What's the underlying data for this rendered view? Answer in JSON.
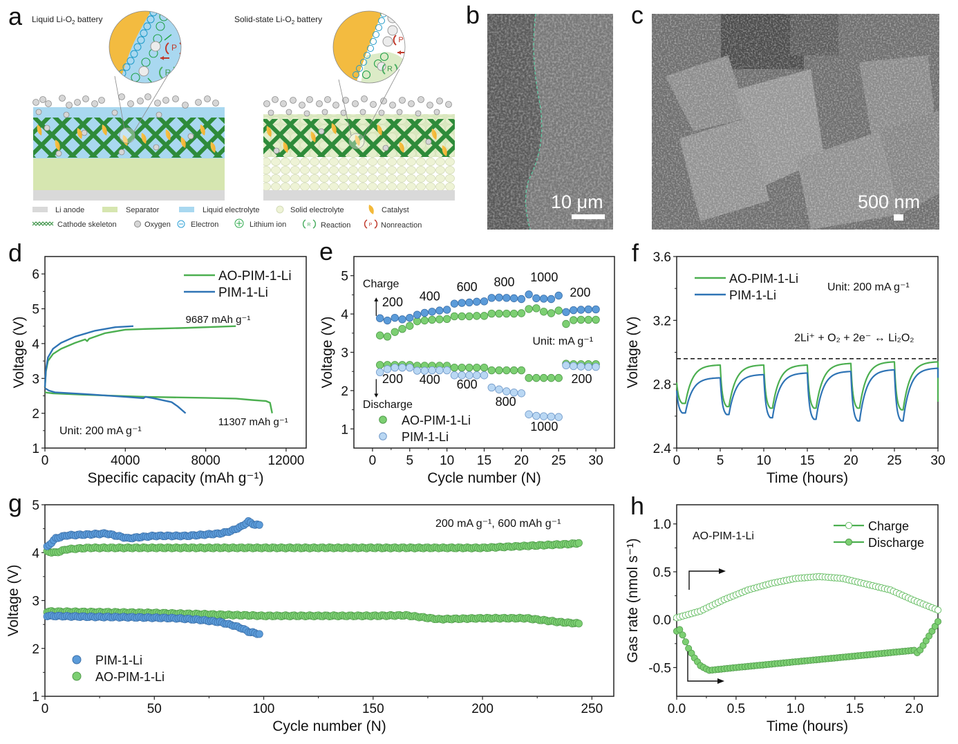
{
  "panels": {
    "a": {
      "letter": "a",
      "left_title": "Liquid Li-O",
      "left_title_sub": "2",
      "left_title_tail": " battery",
      "right_title": "Solid-state Li-O",
      "right_title_sub": "2",
      "right_title_tail": " battery",
      "inset_labels": {
        "reaction": "R",
        "nonreaction": "P"
      },
      "legend": [
        {
          "key": "li-anode",
          "label": "Li anode",
          "color": "#d9d9d9"
        },
        {
          "key": "separator",
          "label": "Separator",
          "color": "#d6e6b0"
        },
        {
          "key": "liquid-electrolyte",
          "label": "Liquid electrolyte",
          "color": "#a9d8f0"
        },
        {
          "key": "solid-electrolyte",
          "label": "Solid electrolyte",
          "color": "#eef2d6"
        },
        {
          "key": "catalyst",
          "label": "Catalyst",
          "color": "#f3b93a"
        },
        {
          "key": "cathode-skeleton",
          "label": "Cathode skeleton",
          "color": "#2e8b3a"
        },
        {
          "key": "oxygen",
          "label": "Oxygen",
          "color": "#cfcfcf"
        },
        {
          "key": "electron",
          "label": "Electron",
          "color": "#2a9fd6"
        },
        {
          "key": "lithium-ion",
          "label": "Lithium ion",
          "color": "#2aa84a"
        },
        {
          "key": "reaction",
          "label": "Reaction",
          "color": "#4caf63"
        },
        {
          "key": "nonreaction",
          "label": "Nonreaction",
          "color": "#c0392b"
        }
      ]
    },
    "b": {
      "letter": "b",
      "scale_label": "10 μm"
    },
    "c": {
      "letter": "c",
      "scale_label": "500 nm"
    },
    "d": {
      "letter": "d"
    },
    "e": {
      "letter": "e"
    },
    "f": {
      "letter": "f"
    },
    "g": {
      "letter": "g"
    },
    "h": {
      "letter": "h"
    }
  },
  "colors": {
    "green": "#4caf50",
    "blue": "#2f74b5",
    "green_marker": "#7ccf72",
    "green_marker_edge": "#4f9a4a",
    "blue_marker": "#5b9bd9",
    "blue_marker_edge": "#3b6fa8",
    "light_blue_marker": "#b9d7f3",
    "light_blue_marker_edge": "#6f98c8"
  },
  "chart_data": [
    {
      "id": "d",
      "type": "line",
      "xlabel": "Specific capacity (mAh g⁻¹)",
      "ylabel": "Voltage (V)",
      "xlim": [
        0,
        13000
      ],
      "ylim": [
        1,
        6.5
      ],
      "xticks": [
        0,
        4000,
        8000,
        12000
      ],
      "yticks": [
        1,
        2,
        3,
        4,
        5,
        6
      ],
      "grid": false,
      "legend_position": "top-right",
      "annotations": [
        {
          "text": "9687 mAh g⁻¹",
          "x": 9600,
          "y": 4.85
        },
        {
          "text": "11307 mAh g⁻¹",
          "x": 11000,
          "y": 1.65
        },
        {
          "text": "Unit: 200 mA g⁻¹",
          "x": 1200,
          "y": 1.45
        }
      ],
      "series": [
        {
          "name": "AO-PIM-1-Li",
          "color": "#4caf50",
          "segments": [
            {
              "x": [
                0,
                50,
                150,
                400,
                800,
                1500,
                2000,
                2100,
                2200,
                3000,
                4000,
                5000,
                7000,
                9500
              ],
              "y": [
                2.75,
                3.2,
                3.5,
                3.7,
                3.85,
                4.02,
                4.12,
                4.07,
                4.14,
                4.3,
                4.4,
                4.42,
                4.45,
                4.5
              ]
            },
            {
              "x": [
                0,
                400,
                2000,
                5000,
                8000,
                9500,
                10300,
                11000,
                11200,
                11307
              ],
              "y": [
                2.6,
                2.57,
                2.53,
                2.47,
                2.44,
                2.42,
                2.38,
                2.35,
                2.3,
                2.0
              ]
            }
          ]
        },
        {
          "name": "PIM-1-Li",
          "color": "#2f74b5",
          "segments": [
            {
              "x": [
                0,
                50,
                150,
                400,
                800,
                1500,
                2500,
                3500,
                4400
              ],
              "y": [
                2.75,
                3.25,
                3.6,
                3.85,
                4.02,
                4.2,
                4.37,
                4.47,
                4.5
              ]
            },
            {
              "x": [
                0,
                200,
                500,
                2000,
                4000,
                4900,
                5000,
                5400,
                6300,
                6600,
                7000
              ],
              "y": [
                2.72,
                2.65,
                2.6,
                2.55,
                2.47,
                2.43,
                2.47,
                2.43,
                2.32,
                2.2,
                2.0
              ]
            }
          ]
        }
      ]
    },
    {
      "id": "e",
      "type": "scatter",
      "xlabel": "Cycle number (N)",
      "ylabel": "Voltage (V)",
      "xlim": [
        -2.5,
        32.5
      ],
      "ylim": [
        0.5,
        5.5
      ],
      "xticks": [
        0,
        5,
        10,
        15,
        20,
        25,
        30
      ],
      "yticks": [
        1,
        2,
        3,
        4,
        5
      ],
      "grid": false,
      "legend_position": "bottom-left",
      "annotations": [
        {
          "text": "Charge",
          "x": -1.3,
          "y": 4.7
        },
        {
          "text": "200",
          "x": 1.3,
          "y": 4.2
        },
        {
          "text": "400",
          "x": 6.3,
          "y": 4.35
        },
        {
          "text": "600",
          "x": 11.3,
          "y": 4.6
        },
        {
          "text": "800",
          "x": 16.3,
          "y": 4.72
        },
        {
          "text": "1000",
          "x": 21.2,
          "y": 4.85
        },
        {
          "text": "200",
          "x": 26.5,
          "y": 4.45
        },
        {
          "text": "Unit: mA g⁻¹",
          "x": 21.5,
          "y": 3.2
        },
        {
          "text": "200",
          "x": 1.3,
          "y": 2.2
        },
        {
          "text": "400",
          "x": 6.3,
          "y": 2.18
        },
        {
          "text": "600",
          "x": 11.3,
          "y": 2.05
        },
        {
          "text": "800",
          "x": 16.5,
          "y": 1.6
        },
        {
          "text": "1000",
          "x": 21.2,
          "y": 0.95
        },
        {
          "text": "200",
          "x": 26.7,
          "y": 2.2
        },
        {
          "text": "Discharge",
          "x": -1.3,
          "y": 1.55
        }
      ],
      "series": [
        {
          "name": "AO-PIM-1-Li",
          "role": "charge",
          "marker": "green",
          "x": [
            1,
            2,
            3,
            4,
            5,
            6,
            7,
            8,
            9,
            10,
            11,
            12,
            13,
            14,
            15,
            16,
            17,
            18,
            19,
            20,
            21,
            22,
            23,
            24,
            25,
            26,
            27,
            28,
            29,
            30
          ],
          "y": [
            3.44,
            3.41,
            3.53,
            3.61,
            3.69,
            3.81,
            3.83,
            3.85,
            3.86,
            3.87,
            3.94,
            3.94,
            3.94,
            3.95,
            3.95,
            4.01,
            4.01,
            4.01,
            4.01,
            4.02,
            4.13,
            4.15,
            4.06,
            4.02,
            4.09,
            3.74,
            3.84,
            3.85,
            3.85,
            3.85
          ]
        },
        {
          "name": "PIM-1-Li",
          "role": "charge",
          "marker": "blue",
          "x": [
            1,
            2,
            3,
            4,
            5,
            6,
            7,
            8,
            9,
            10,
            11,
            12,
            13,
            14,
            15,
            16,
            17,
            18,
            19,
            20,
            21,
            22,
            23,
            24,
            25,
            26,
            27,
            28,
            29,
            30
          ],
          "y": [
            3.89,
            3.83,
            3.9,
            3.86,
            3.9,
            3.98,
            4.03,
            4.06,
            4.09,
            4.11,
            4.27,
            4.29,
            4.3,
            4.32,
            4.33,
            4.42,
            4.43,
            4.42,
            4.41,
            4.39,
            4.51,
            4.41,
            4.4,
            4.39,
            4.48,
            4.05,
            4.1,
            4.11,
            4.12,
            4.12
          ]
        },
        {
          "name": "AO-PIM-1-Li",
          "role": "discharge",
          "marker": "green",
          "x": [
            1,
            2,
            3,
            4,
            5,
            6,
            7,
            8,
            9,
            10,
            11,
            12,
            13,
            14,
            15,
            16,
            17,
            18,
            19,
            20,
            21,
            22,
            23,
            24,
            25,
            26,
            27,
            28,
            29,
            30
          ],
          "y": [
            2.67,
            2.67,
            2.67,
            2.67,
            2.67,
            2.65,
            2.65,
            2.65,
            2.65,
            2.65,
            2.6,
            2.6,
            2.6,
            2.6,
            2.6,
            2.53,
            2.53,
            2.53,
            2.53,
            2.53,
            2.33,
            2.33,
            2.33,
            2.33,
            2.33,
            2.7,
            2.69,
            2.69,
            2.69,
            2.69
          ]
        },
        {
          "name": "PIM-1-Li",
          "role": "discharge",
          "marker": "light_blue",
          "x": [
            1,
            2,
            3,
            4,
            5,
            6,
            7,
            8,
            9,
            10,
            11,
            12,
            13,
            14,
            15,
            16,
            17,
            18,
            19,
            20,
            21,
            22,
            23,
            24,
            25,
            26,
            27,
            28,
            29,
            30
          ],
          "y": [
            2.48,
            2.56,
            2.6,
            2.6,
            2.6,
            2.52,
            2.52,
            2.53,
            2.53,
            2.53,
            2.4,
            2.4,
            2.4,
            2.4,
            2.4,
            2.08,
            2.03,
            1.98,
            1.95,
            1.93,
            1.38,
            1.34,
            1.33,
            1.32,
            1.31,
            2.66,
            2.64,
            2.63,
            2.62,
            2.62
          ]
        }
      ]
    },
    {
      "id": "f",
      "type": "line",
      "xlabel": "Time (hours)",
      "ylabel": "Voltage (V)",
      "xlim": [
        0,
        30
      ],
      "ylim": [
        2.4,
        3.6
      ],
      "xticks": [
        0,
        5,
        10,
        15,
        20,
        25,
        30
      ],
      "yticks": [
        2.4,
        2.8,
        3.2,
        3.6
      ],
      "grid": false,
      "legend_position": "top-left",
      "reference_line": {
        "y": 2.96,
        "style": "dashed",
        "label": "2Li⁺ + O₂ + 2e⁻ ↔ Li₂O₂"
      },
      "annotations": [
        {
          "text": "Unit: 200 mA g⁻¹",
          "x": 17.5,
          "y": 3.4
        }
      ],
      "series": [
        {
          "name": "AO-PIM-1-Li",
          "color": "#4caf50",
          "cycles": [
            {
              "start": 0,
              "min": 2.68,
              "max": 2.92
            },
            {
              "start": 5,
              "min": 2.66,
              "max": 2.92
            },
            {
              "start": 10,
              "min": 2.65,
              "max": 2.92
            },
            {
              "start": 15,
              "min": 2.65,
              "max": 2.93
            },
            {
              "start": 20,
              "min": 2.65,
              "max": 2.94
            },
            {
              "start": 25,
              "min": 2.64,
              "max": 2.94
            }
          ]
        },
        {
          "name": "PIM-1-Li",
          "color": "#2f74b5",
          "cycles": [
            {
              "start": 0,
              "min": 2.62,
              "max": 2.84
            },
            {
              "start": 5,
              "min": 2.61,
              "max": 2.86
            },
            {
              "start": 10,
              "min": 2.59,
              "max": 2.87
            },
            {
              "start": 15,
              "min": 2.58,
              "max": 2.88
            },
            {
              "start": 20,
              "min": 2.57,
              "max": 2.89
            },
            {
              "start": 25,
              "min": 2.57,
              "max": 2.9
            }
          ]
        }
      ]
    },
    {
      "id": "g",
      "type": "scatter",
      "xlabel": "Cycle number (N)",
      "ylabel": "Voltage (V)",
      "xlim": [
        0,
        260
      ],
      "ylim": [
        1,
        5
      ],
      "xticks": [
        0,
        50,
        100,
        150,
        200,
        250
      ],
      "yticks": [
        1,
        2,
        3,
        4,
        5
      ],
      "grid": false,
      "legend_position": "bottom-left",
      "annotations": [
        {
          "text": "200 mA g⁻¹, 600 mAh g⁻¹",
          "x": 162,
          "y": 4.62
        }
      ],
      "series": [
        {
          "name": "PIM-1-Li",
          "marker": "blue",
          "n_cycles": 98,
          "charge_keypoints": {
            "x": [
              1,
              5,
              10,
              20,
              28,
              38,
              50,
              65,
              80,
              85,
              90,
              93,
              96
            ],
            "y": [
              4.12,
              4.3,
              4.36,
              4.38,
              4.4,
              4.3,
              4.35,
              4.35,
              4.4,
              4.45,
              4.55,
              4.65,
              4.58
            ]
          },
          "discharge_keypoints": {
            "x": [
              1,
              20,
              40,
              60,
              70,
              80,
              86,
              90,
              93,
              98
            ],
            "y": [
              2.68,
              2.66,
              2.65,
              2.63,
              2.6,
              2.55,
              2.48,
              2.42,
              2.35,
              2.3
            ]
          }
        },
        {
          "name": "AO-PIM-1-Li",
          "marker": "green",
          "n_cycles": 244,
          "charge_keypoints": {
            "x": [
              1,
              5,
              10,
              20,
              50,
              100,
              150,
              200,
              220,
              240,
              244
            ],
            "y": [
              4.02,
              4.0,
              4.07,
              4.1,
              4.1,
              4.1,
              4.1,
              4.1,
              4.14,
              4.18,
              4.2
            ]
          },
          "discharge_keypoints": {
            "x": [
              1,
              20,
              50,
              100,
              150,
              165,
              180,
              200,
              220,
              235,
              244
            ],
            "y": [
              2.77,
              2.76,
              2.74,
              2.68,
              2.68,
              2.69,
              2.61,
              2.63,
              2.63,
              2.55,
              2.52
            ]
          }
        }
      ]
    },
    {
      "id": "h",
      "type": "line",
      "xlabel": "Time (hours)",
      "ylabel": "Gas rate (nmol s⁻¹)",
      "xlim": [
        0,
        2.2
      ],
      "ylim": [
        -0.8,
        1.2
      ],
      "xticks": [
        0.0,
        0.5,
        1.0,
        1.5,
        2.0
      ],
      "yticks": [
        -0.5,
        0.0,
        0.5,
        1.0
      ],
      "grid": false,
      "legend_position": "top-right",
      "annotations": [
        {
          "text": "AO-PIM-1-Li",
          "x": 0.12,
          "y": 0.88
        }
      ],
      "series": [
        {
          "name": "Charge",
          "marker": "open-circle",
          "color": "#4caf50",
          "x": [
            0.0,
            0.2,
            0.4,
            0.6,
            0.8,
            1.0,
            1.2,
            1.4,
            1.6,
            1.8,
            2.0,
            2.2
          ],
          "y": [
            0.02,
            0.09,
            0.21,
            0.31,
            0.38,
            0.43,
            0.45,
            0.43,
            0.37,
            0.31,
            0.2,
            0.1
          ]
        },
        {
          "name": "Discharge",
          "marker": "filled-circle",
          "color": "#4caf50",
          "x": [
            0.0,
            0.03,
            0.06,
            0.1,
            0.15,
            0.2,
            0.27,
            0.5,
            1.0,
            1.5,
            2.0,
            2.03,
            2.06,
            2.1,
            2.15,
            2.2
          ],
          "y": [
            -0.12,
            -0.1,
            -0.19,
            -0.3,
            -0.4,
            -0.48,
            -0.53,
            -0.5,
            -0.44,
            -0.38,
            -0.32,
            -0.35,
            -0.3,
            -0.22,
            -0.12,
            -0.02
          ]
        }
      ]
    }
  ]
}
